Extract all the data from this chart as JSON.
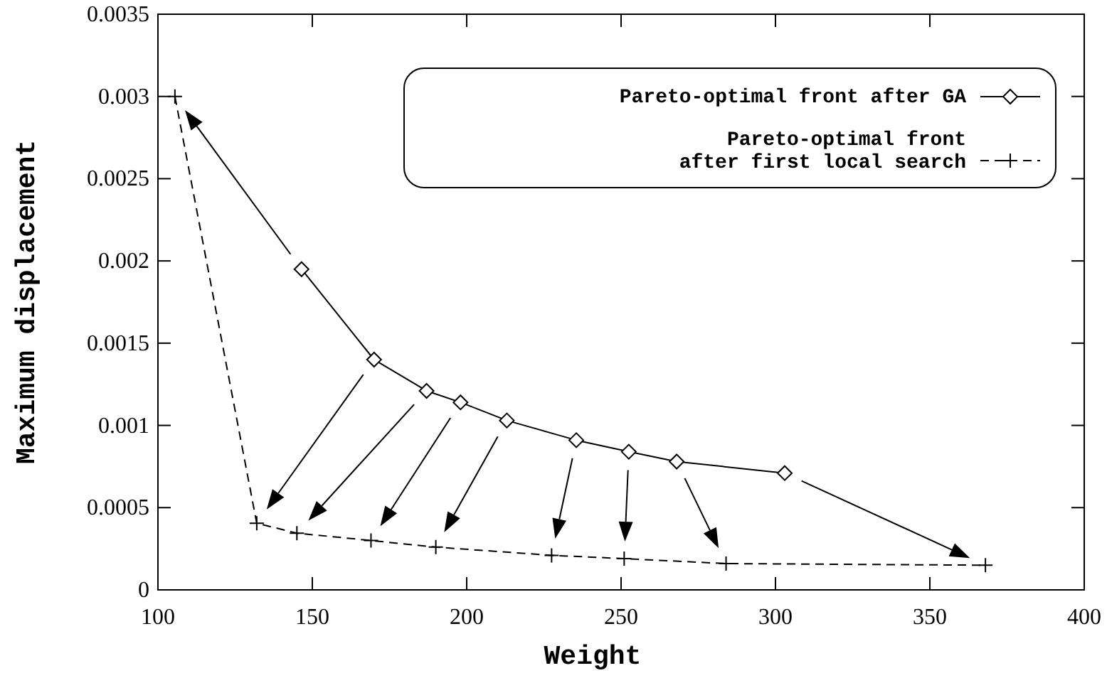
{
  "chart_data": {
    "type": "line",
    "xlabel": "Weight",
    "ylabel": "Maximum displacement",
    "xlim": [
      100,
      400
    ],
    "xticks": [
      100,
      150,
      200,
      250,
      300,
      350,
      400
    ],
    "ylim": [
      0,
      0.0035
    ],
    "yticks": [
      0,
      0.0005,
      0.001,
      0.0015,
      0.002,
      0.0025,
      0.003,
      0.0035
    ],
    "legend": "top right",
    "grid": false,
    "series": [
      {
        "name": "Pareto-optimal front after GA",
        "color": "#000000",
        "marker": "diamond",
        "line_style": "solid",
        "x": [
          146.5,
          170,
          187,
          198,
          213,
          235.5,
          252.5,
          268,
          303
        ],
        "values": [
          0.00195,
          0.0014,
          0.00121,
          0.00114,
          0.00103,
          0.00091,
          0.00084,
          0.00078,
          0.00071
        ]
      },
      {
        "name": "Pareto-optimal front\n    after first local search",
        "color": "#000000",
        "marker": "cross",
        "line_style": "dashed",
        "x": [
          105.5,
          132,
          145,
          169,
          190,
          227.5,
          251,
          284,
          368
        ],
        "values": [
          0.003,
          0.000405,
          0.000345,
          0.0003,
          0.00026,
          0.00021,
          0.00019,
          0.00016,
          0.00015
        ]
      }
    ]
  }
}
